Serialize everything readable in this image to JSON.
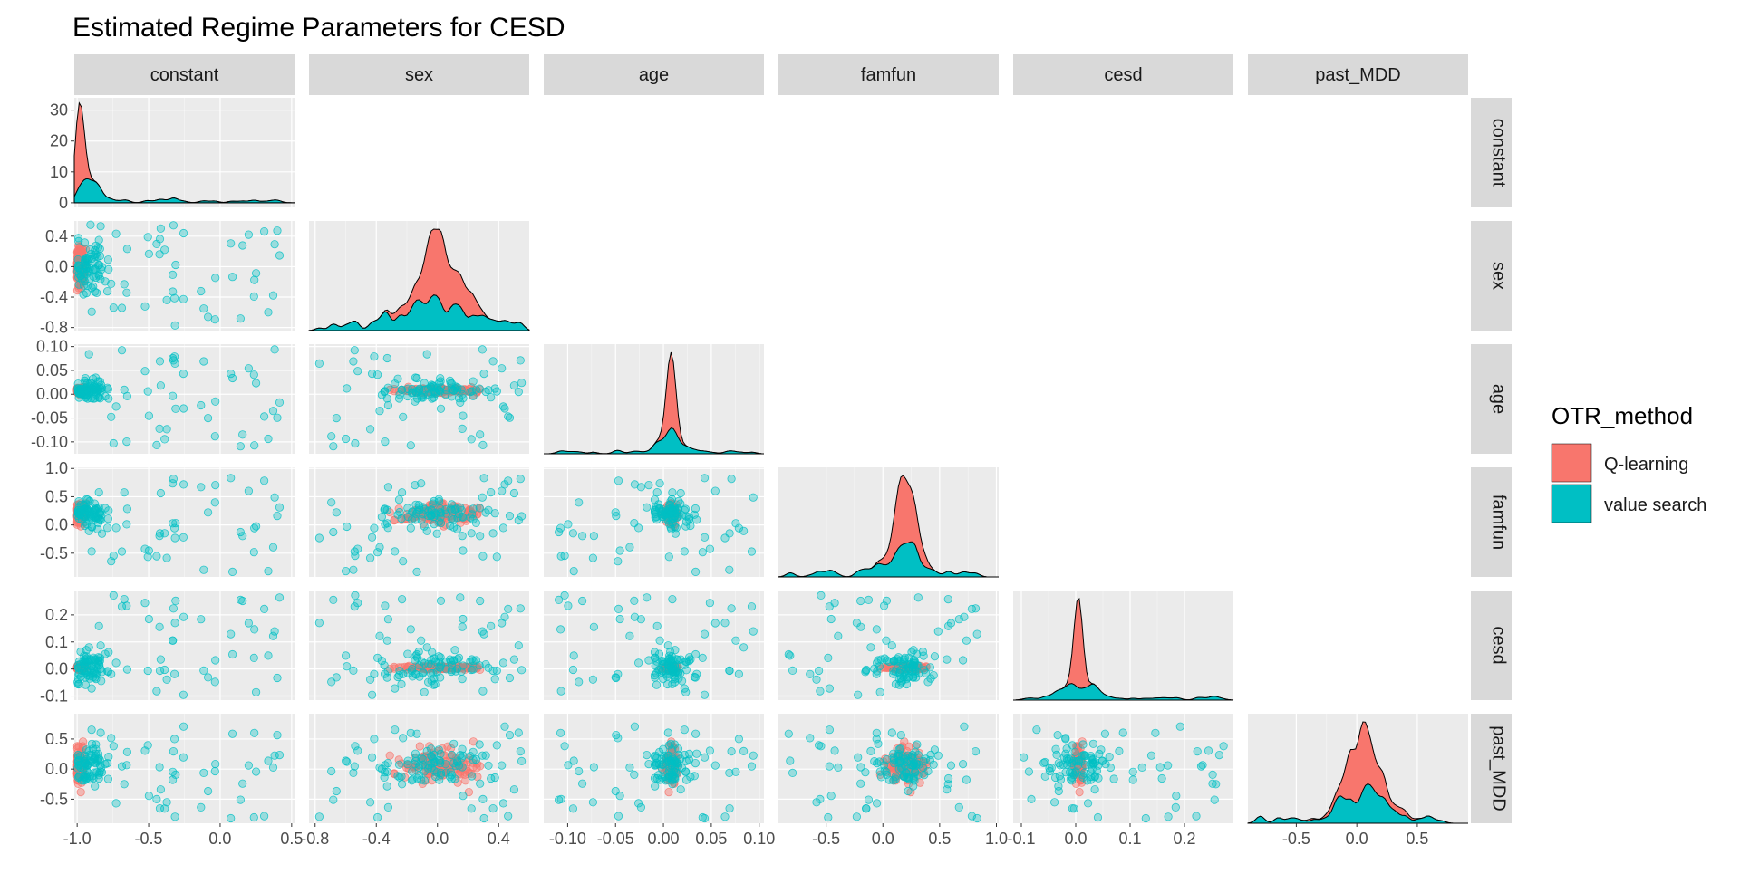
{
  "chart_data": {
    "type": "scatter",
    "title": "Estimated Regime Parameters for CESD",
    "variables": [
      "constant",
      "sex",
      "age",
      "famfun",
      "cesd",
      "past_MDD"
    ],
    "axes": {
      "constant": {
        "lim": [
          -1.02,
          0.52
        ],
        "ticks": [
          -1.0,
          -0.5,
          0.0,
          0.5
        ],
        "tick_labels": [
          "-1.0",
          "-0.5",
          "0.0",
          "0.5"
        ]
      },
      "sex": {
        "lim": [
          -0.84,
          0.6
        ],
        "ticks": [
          -0.8,
          -0.4,
          0.0,
          0.4
        ],
        "tick_labels": [
          "-0.8",
          "-0.4",
          "0.0",
          "0.4"
        ]
      },
      "age": {
        "lim": [
          -0.125,
          0.105
        ],
        "ticks": [
          -0.1,
          -0.05,
          0.0,
          0.05,
          0.1
        ],
        "tick_labels": [
          "-0.10",
          "-0.05",
          "0.00",
          "0.05",
          "0.10"
        ]
      },
      "famfun": {
        "lim": [
          -0.92,
          1.02
        ],
        "ticks": [
          -0.5,
          0.0,
          0.5,
          1.0
        ],
        "tick_labels": [
          "-0.5",
          "0.0",
          "0.5",
          "1.0"
        ]
      },
      "cesd": {
        "lim": [
          -0.115,
          0.29
        ],
        "ticks": [
          -0.1,
          0.0,
          0.1,
          0.2
        ],
        "tick_labels": [
          "-0.1",
          "0.0",
          "0.1",
          "0.2"
        ]
      },
      "past_MDD": {
        "lim": [
          -0.9,
          0.92
        ],
        "ticks": [
          -0.5,
          0.0,
          0.5
        ],
        "tick_labels": [
          "-0.5",
          "0.0",
          "0.5"
        ]
      }
    },
    "diag_axes": {
      "constant": {
        "lim": [
          -1.5,
          34
        ],
        "ticks": [
          0,
          10,
          20,
          30
        ],
        "tick_labels": [
          "0",
          "10",
          "20",
          "30"
        ]
      }
    },
    "grid": true,
    "legend": {
      "title": "OTR_method",
      "position": "right",
      "entries": [
        {
          "label": "Q-learning",
          "color": "#F8766D"
        },
        {
          "label": "value search",
          "color": "#00BFC4"
        }
      ]
    },
    "series": [
      {
        "name": "Q-learning",
        "color": "#F8766D",
        "center": {
          "constant": -0.98,
          "sex": 0.0,
          "age": 0.008,
          "famfun": 0.2,
          "cesd": 0.005,
          "past_MDD": 0.05
        },
        "spread": {
          "constant": 0.02,
          "sex": 0.12,
          "age": 0.003,
          "famfun": 0.09,
          "cesd": 0.003,
          "past_MDD": 0.12
        }
      },
      {
        "name": "value search",
        "color": "#00BFC4",
        "center": {
          "constant": -0.92,
          "sex": 0.0,
          "age": 0.008,
          "famfun": 0.2,
          "cesd": 0.01,
          "past_MDD": 0.05
        },
        "spread": {
          "constant": 0.08,
          "sex": 0.2,
          "age": 0.01,
          "famfun": 0.12,
          "cesd": 0.03,
          "past_MDD": 0.15
        }
      }
    ]
  }
}
